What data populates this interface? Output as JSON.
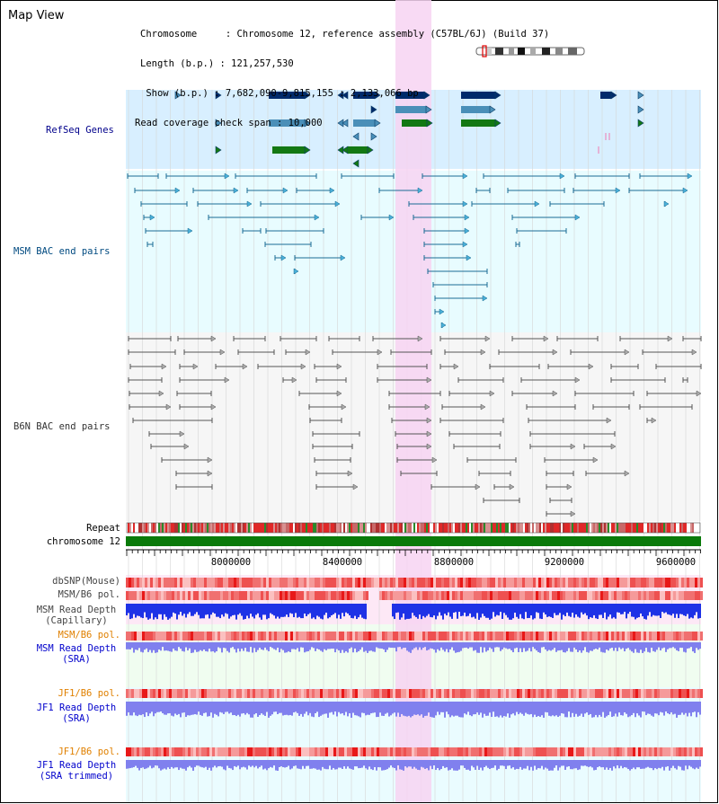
{
  "page": {
    "title": "Map View"
  },
  "info": {
    "line1": "Chromosome     : Chromosome 12, reference assembly (C57BL/6J) (Build 37)",
    "line2": "Length (b.p.) : 121,257,530",
    "line3": " Show (b.p.) : 7,682,090-9,815,155 : 2,133,066 bp",
    "line4": "Read coverage check span : 10,000"
  },
  "tracks": {
    "refseq": "RefSeq Genes",
    "msm_bac": "MSM BAC end pairs",
    "b6n_bac": "B6N BAC end pairs",
    "repeat": "Repeat",
    "chromosome": "chromosome 12",
    "dbsnp": "dbSNP(Mouse)",
    "msm_b6_pol_1": "MSM/B6 pol.",
    "msm_read_depth_cap_1": "MSM Read Depth",
    "msm_read_depth_cap_2": "(Capillary)",
    "msm_b6_pol_2": "MSM/B6 pol.",
    "msm_read_depth_sra_1": "MSM Read Depth",
    "msm_read_depth_sra_2": "(SRA)",
    "jf1_b6_pol_1": "JF1/B6 pol.",
    "jf1_read_depth_sra_1": "JF1 Read Depth",
    "jf1_read_depth_sra_2": "(SRA)",
    "jf1_b6_pol_2": "JF1/B6 pol.",
    "jf1_read_depth_trim_1": "JF1 Read Depth",
    "jf1_read_depth_trim_2": "(SRA trimmed)"
  },
  "axis": {
    "ticks": [
      "8000000",
      "8400000",
      "8800000",
      "9200000",
      "9600000"
    ]
  },
  "colors": {
    "refseq_bg": "#d8efff",
    "msm_bg": "#e8fcff",
    "b6n_bg": "#f6f6f6",
    "highlight": "#f7d4f2",
    "msm_label": "#004a80",
    "refseq_label": "#00008b",
    "orange_label": "#e08000",
    "blue_label": "#0000cc",
    "chromosome": "#0a7a0a",
    "depth_cap": "#1e32e6",
    "depth_sra": "#8080ee"
  }
}
